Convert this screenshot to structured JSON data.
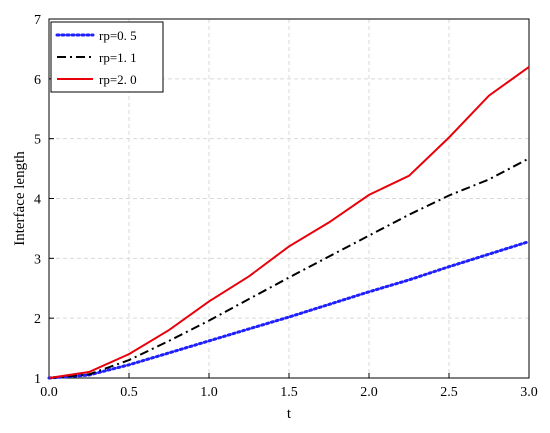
{
  "chart_data": {
    "type": "line",
    "title": "",
    "xlabel": "t",
    "ylabel": "Interface length",
    "xlim": [
      0.0,
      3.0
    ],
    "ylim": [
      1,
      7
    ],
    "xticks": [
      "0.0",
      "0.5",
      "1.0",
      "1.5",
      "2.0",
      "2.5",
      "3.0"
    ],
    "yticks": [
      "1",
      "2",
      "3",
      "4",
      "5",
      "6",
      "7"
    ],
    "grid": true,
    "legend_position": "top-left",
    "series": [
      {
        "name": "rp=0. 5",
        "color": "#1f1fff",
        "dash": "dotted",
        "x": [
          0.0,
          0.25,
          0.5,
          0.75,
          1.0,
          1.25,
          1.5,
          1.75,
          2.0,
          2.25,
          2.5,
          2.75,
          3.0
        ],
        "y": [
          1.0,
          1.05,
          1.22,
          1.42,
          1.62,
          1.82,
          2.02,
          2.23,
          2.44,
          2.64,
          2.86,
          3.07,
          3.28
        ]
      },
      {
        "name": "rp=1. 1",
        "color": "#000000",
        "dash": "dashdot",
        "x": [
          0.0,
          0.25,
          0.5,
          0.75,
          1.0,
          1.25,
          1.5,
          1.75,
          2.0,
          2.25,
          2.5,
          2.75,
          3.0
        ],
        "y": [
          1.0,
          1.06,
          1.3,
          1.62,
          1.96,
          2.32,
          2.68,
          3.03,
          3.38,
          3.73,
          4.05,
          4.32,
          4.67
        ]
      },
      {
        "name": "rp=2. 0",
        "color": "#e8000b",
        "dash": "solid",
        "x": [
          0.0,
          0.25,
          0.5,
          0.75,
          1.0,
          1.25,
          1.5,
          1.75,
          2.0,
          2.25,
          2.5,
          2.75,
          3.0
        ],
        "y": [
          1.0,
          1.1,
          1.4,
          1.8,
          2.28,
          2.7,
          3.2,
          3.6,
          4.06,
          4.38,
          5.02,
          5.72,
          6.2
        ]
      }
    ]
  }
}
